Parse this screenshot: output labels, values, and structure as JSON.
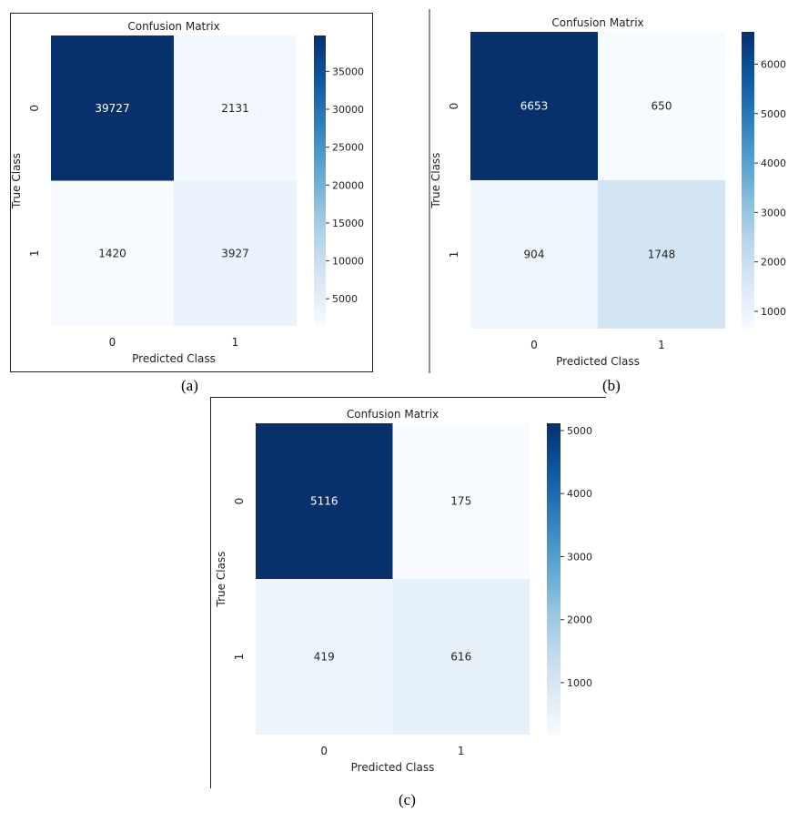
{
  "figure": {
    "captions": [
      "(a)",
      "(b)",
      "(c)"
    ]
  },
  "chart_data": [
    {
      "type": "heatmap",
      "title": "Confusion Matrix",
      "xlabel": "Predicted Class",
      "ylabel": "True Class",
      "x_categories": [
        "0",
        "1"
      ],
      "y_categories": [
        "0",
        "1"
      ],
      "values": [
        [
          39727,
          2131
        ],
        [
          1420,
          3927
        ]
      ],
      "colormap": "Blues",
      "colorbar_ticks": [
        5000,
        10000,
        15000,
        20000,
        25000,
        30000,
        35000
      ],
      "colorbar_range": [
        1420,
        39727
      ],
      "caption": "(a)"
    },
    {
      "type": "heatmap",
      "title": "Confusion Matrix",
      "xlabel": "Predicted Class",
      "ylabel": "True Class",
      "x_categories": [
        "0",
        "1"
      ],
      "y_categories": [
        "0",
        "1"
      ],
      "values": [
        [
          6653,
          650
        ],
        [
          904,
          1748
        ]
      ],
      "colormap": "Blues",
      "colorbar_ticks": [
        1000,
        2000,
        3000,
        4000,
        5000,
        6000
      ],
      "colorbar_range": [
        650,
        6653
      ],
      "caption": "(b)"
    },
    {
      "type": "heatmap",
      "title": "Confusion Matrix",
      "xlabel": "Predicted Class",
      "ylabel": "True Class",
      "x_categories": [
        "0",
        "1"
      ],
      "y_categories": [
        "0",
        "1"
      ],
      "values": [
        [
          5116,
          175
        ],
        [
          419,
          616
        ]
      ],
      "colormap": "Blues",
      "colorbar_ticks": [
        1000,
        2000,
        3000,
        4000,
        5000
      ],
      "colorbar_range": [
        175,
        5116
      ],
      "caption": "(c)"
    }
  ]
}
